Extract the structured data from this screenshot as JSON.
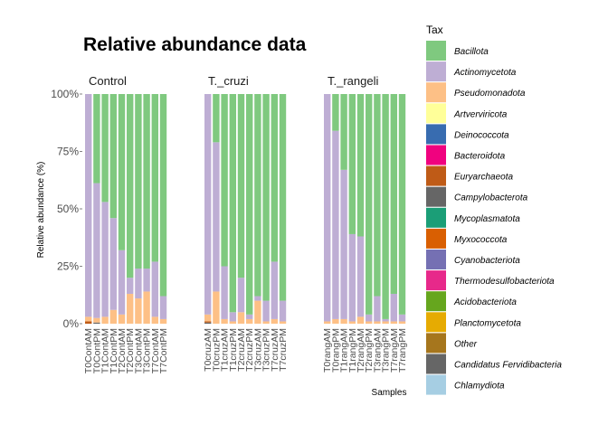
{
  "chart_data": {
    "type": "bar",
    "stacked": true,
    "title": "Relative abundance data",
    "xlabel": "Samples",
    "ylabel": "Relative abundance (%)",
    "ylim": [
      0,
      1
    ],
    "yticks": [
      {
        "value": 0,
        "label": "0%"
      },
      {
        "value": 0.25,
        "label": "25%"
      },
      {
        "value": 0.5,
        "label": "50%"
      },
      {
        "value": 0.75,
        "label": "75%"
      },
      {
        "value": 1,
        "label": "100%"
      }
    ],
    "grid": false,
    "legend": {
      "title": "Tax",
      "position": "right"
    },
    "taxa": [
      {
        "name": "Bacillota",
        "color": "#7FC97F"
      },
      {
        "name": "Actinomycetota",
        "color": "#BEAED4"
      },
      {
        "name": "Pseudomonadota",
        "color": "#FDC086"
      },
      {
        "name": "Artverviricota",
        "color": "#FFFF99"
      },
      {
        "name": "Deinococcota",
        "color": "#386CB0"
      },
      {
        "name": "Bacteroidota",
        "color": "#F0027F"
      },
      {
        "name": "Euryarchaeota",
        "color": "#BF5B17"
      },
      {
        "name": "Campylobacterota",
        "color": "#666666"
      },
      {
        "name": "Mycoplasmatota",
        "color": "#1B9E77"
      },
      {
        "name": "Myxococcota",
        "color": "#D95F02"
      },
      {
        "name": "Cyanobacteriota",
        "color": "#7570B3"
      },
      {
        "name": "Thermodesulfobacteriota",
        "color": "#E7298A"
      },
      {
        "name": "Acidobacteriota",
        "color": "#66A61E"
      },
      {
        "name": "Planctomycetota",
        "color": "#E6AB02"
      },
      {
        "name": "Other",
        "color": "#A6761D"
      },
      {
        "name": "Candidatus Fervidibacteria",
        "color": "#666666"
      },
      {
        "name": "Chlamydiota",
        "color": "#A6CEE3"
      }
    ],
    "facets": [
      {
        "label": "Control",
        "samples": [
          {
            "name": "T0ContAM",
            "values": {
              "Pseudomonadota": 0.02,
              "Actinomycetota": 0.97,
              "Bacillota": 0.0,
              "Euryarchaeota": 0.01
            }
          },
          {
            "name": "T0ContPM",
            "values": {
              "Pseudomonadota": 0.02,
              "Actinomycetota": 0.59,
              "Bacillota": 0.39,
              "Campylobacterota": 0.005
            }
          },
          {
            "name": "T1ContAM",
            "values": {
              "Pseudomonadota": 0.03,
              "Actinomycetota": 0.5,
              "Bacillota": 0.47
            }
          },
          {
            "name": "T1ContPM",
            "values": {
              "Pseudomonadota": 0.06,
              "Actinomycetota": 0.4,
              "Bacillota": 0.54
            }
          },
          {
            "name": "T2ContAM",
            "values": {
              "Pseudomonadota": 0.04,
              "Actinomycetota": 0.28,
              "Bacillota": 0.68
            }
          },
          {
            "name": "T2ContPM",
            "values": {
              "Pseudomonadota": 0.13,
              "Actinomycetota": 0.07,
              "Bacillota": 0.8
            }
          },
          {
            "name": "T3ContAM",
            "values": {
              "Pseudomonadota": 0.11,
              "Actinomycetota": 0.13,
              "Bacillota": 0.76
            }
          },
          {
            "name": "T3ContPM",
            "values": {
              "Pseudomonadota": 0.14,
              "Actinomycetota": 0.1,
              "Bacillota": 0.76
            }
          },
          {
            "name": "T7ContAM",
            "values": {
              "Pseudomonadota": 0.03,
              "Actinomycetota": 0.24,
              "Bacillota": 0.73
            }
          },
          {
            "name": "T7ContPM",
            "values": {
              "Pseudomonadota": 0.02,
              "Actinomycetota": 0.1,
              "Bacillota": 0.88
            }
          }
        ]
      },
      {
        "label": "T._cruzi",
        "samples": [
          {
            "name": "T0cruzAM",
            "values": {
              "Pseudomonadota": 0.03,
              "Actinomycetota": 0.96,
              "Bacillota": 0.0,
              "Euryarchaeota": 0.005,
              "Campylobacterota": 0.005
            }
          },
          {
            "name": "T0cruzPM",
            "values": {
              "Pseudomonadota": 0.14,
              "Actinomycetota": 0.65,
              "Bacillota": 0.21
            }
          },
          {
            "name": "T1cruzAM",
            "values": {
              "Pseudomonadota": 0.02,
              "Actinomycetota": 0.23,
              "Bacillota": 0.75
            }
          },
          {
            "name": "T1cruzPM",
            "values": {
              "Pseudomonadota": 0.01,
              "Actinomycetota": 0.04,
              "Bacillota": 0.95
            }
          },
          {
            "name": "T2cruzAM",
            "values": {
              "Pseudomonadota": 0.05,
              "Actinomycetota": 0.15,
              "Bacillota": 0.8
            }
          },
          {
            "name": "T2cruzPM",
            "values": {
              "Pseudomonadota": 0.02,
              "Actinomycetota": 0.02,
              "Bacillota": 0.96
            }
          },
          {
            "name": "T3cruzAM",
            "values": {
              "Pseudomonadota": 0.1,
              "Actinomycetota": 0.02,
              "Bacillota": 0.88
            }
          },
          {
            "name": "T3cruzPM",
            "values": {
              "Pseudomonadota": 0.01,
              "Actinomycetota": 0.09,
              "Bacillota": 0.9
            }
          },
          {
            "name": "T7cruzAM",
            "values": {
              "Pseudomonadota": 0.02,
              "Actinomycetota": 0.25,
              "Bacillota": 0.73
            }
          },
          {
            "name": "T7cruzPM",
            "values": {
              "Pseudomonadota": 0.01,
              "Actinomycetota": 0.09,
              "Bacillota": 0.9
            }
          }
        ]
      },
      {
        "label": "T._rangeli",
        "samples": [
          {
            "name": "T0rangAM",
            "values": {
              "Pseudomonadota": 0.01,
              "Actinomycetota": 0.99,
              "Bacillota": 0.0
            }
          },
          {
            "name": "T0rangPM",
            "values": {
              "Pseudomonadota": 0.02,
              "Actinomycetota": 0.82,
              "Bacillota": 0.16
            }
          },
          {
            "name": "T1rangAM",
            "values": {
              "Pseudomonadota": 0.02,
              "Actinomycetota": 0.65,
              "Bacillota": 0.33
            }
          },
          {
            "name": "T1rangPM",
            "values": {
              "Pseudomonadota": 0.01,
              "Actinomycetota": 0.38,
              "Bacillota": 0.61
            }
          },
          {
            "name": "T2rangAM",
            "values": {
              "Pseudomonadota": 0.03,
              "Actinomycetota": 0.35,
              "Bacillota": 0.62
            }
          },
          {
            "name": "T2rangPM",
            "values": {
              "Pseudomonadota": 0.01,
              "Actinomycetota": 0.03,
              "Bacillota": 0.96
            }
          },
          {
            "name": "T3rangAM",
            "values": {
              "Pseudomonadota": 0.01,
              "Actinomycetota": 0.11,
              "Bacillota": 0.88
            }
          },
          {
            "name": "T3rangPM",
            "values": {
              "Pseudomonadota": 0.01,
              "Actinomycetota": 0.01,
              "Bacillota": 0.98
            }
          },
          {
            "name": "T7rangAM",
            "values": {
              "Pseudomonadota": 0.01,
              "Actinomycetota": 0.12,
              "Bacillota": 0.87
            }
          },
          {
            "name": "T7rangPM",
            "values": {
              "Pseudomonadota": 0.01,
              "Actinomycetota": 0.03,
              "Bacillota": 0.96
            }
          }
        ]
      }
    ]
  }
}
